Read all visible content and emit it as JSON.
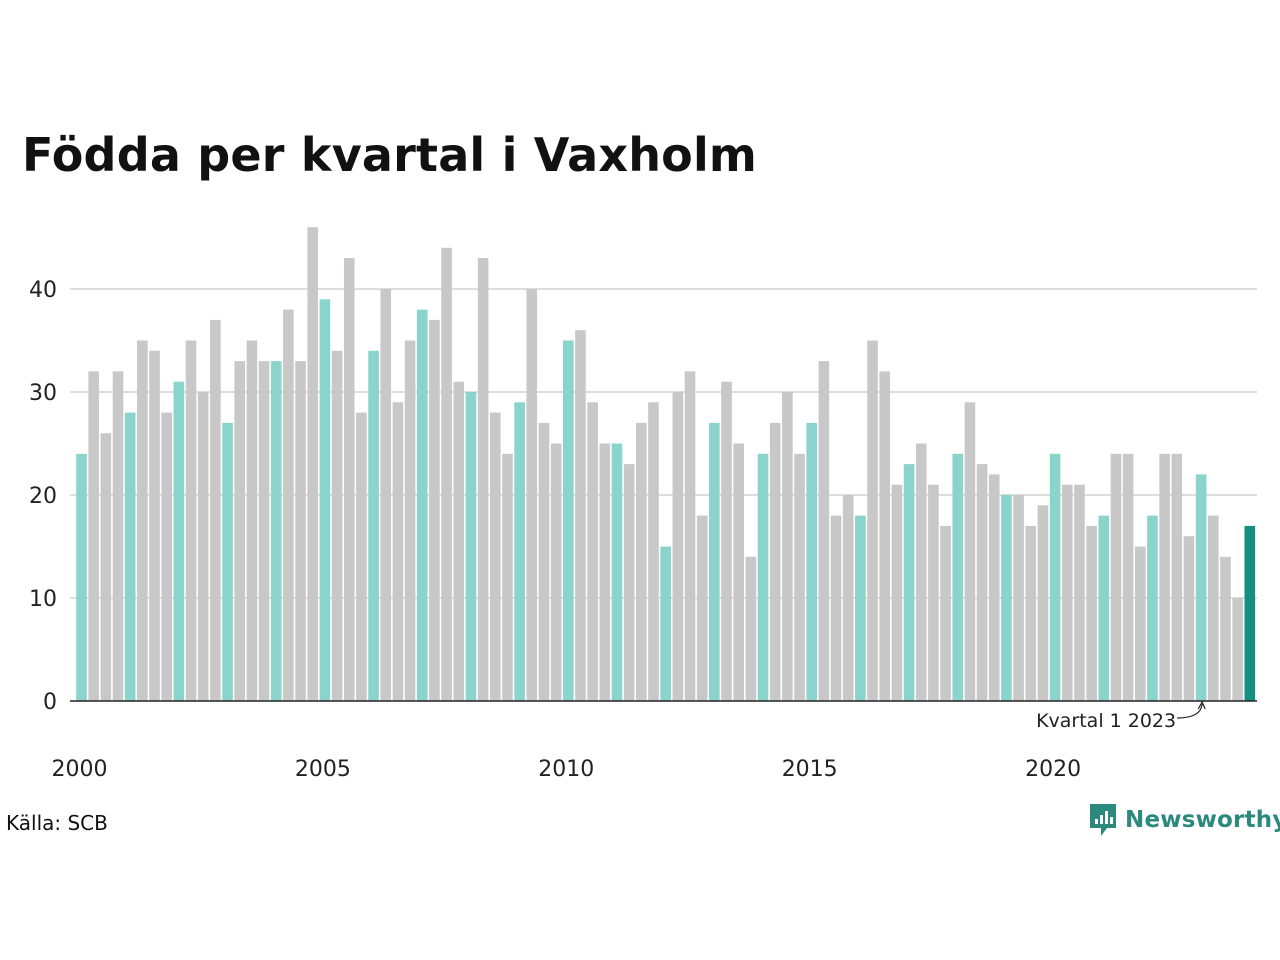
{
  "title": "Födda per kvartal i Vaxholm",
  "source": "Källa: SCB",
  "brand": "Newsworthy",
  "colors": {
    "bar": "#c8c8c8",
    "bar_q1": "#8ad4cc",
    "bar_latest": "#14907f",
    "grid": "#dddddd",
    "axis": "#222222",
    "brand": "#2b8a7d"
  },
  "chart_data": {
    "type": "bar",
    "title": "Födda per kvartal i Vaxholm",
    "xlabel": "",
    "ylabel": "",
    "ylim": [
      0,
      47
    ],
    "yticks": [
      0,
      10,
      20,
      30,
      40
    ],
    "xticks": [
      {
        "label": "2000",
        "index": 0
      },
      {
        "label": "2005",
        "index": 20
      },
      {
        "label": "2010",
        "index": 40
      },
      {
        "label": "2015",
        "index": 60
      },
      {
        "label": "2020",
        "index": 80
      }
    ],
    "grid": true,
    "legend": "none",
    "x_start": "2000 Q1",
    "values": [
      24,
      32,
      26,
      32,
      28,
      35,
      34,
      28,
      31,
      35,
      30,
      37,
      27,
      33,
      35,
      33,
      33,
      38,
      33,
      46,
      39,
      34,
      43,
      28,
      34,
      40,
      29,
      35,
      38,
      37,
      44,
      31,
      30,
      43,
      28,
      24,
      29,
      40,
      27,
      25,
      35,
      36,
      29,
      25,
      25,
      23,
      27,
      29,
      15,
      30,
      32,
      18,
      27,
      31,
      25,
      14,
      24,
      27,
      30,
      24,
      27,
      33,
      18,
      20,
      18,
      35,
      32,
      21,
      23,
      25,
      21,
      17,
      24,
      29,
      23,
      22,
      20,
      20,
      17,
      19,
      24,
      21,
      21,
      17,
      18,
      24,
      24,
      15,
      18,
      24,
      24,
      16,
      22,
      18,
      14,
      10,
      17
    ],
    "highlight": "Q1 of each year; last bar emphasized",
    "annotation": {
      "text": "Kvartal 1 2023",
      "index": 92
    }
  }
}
